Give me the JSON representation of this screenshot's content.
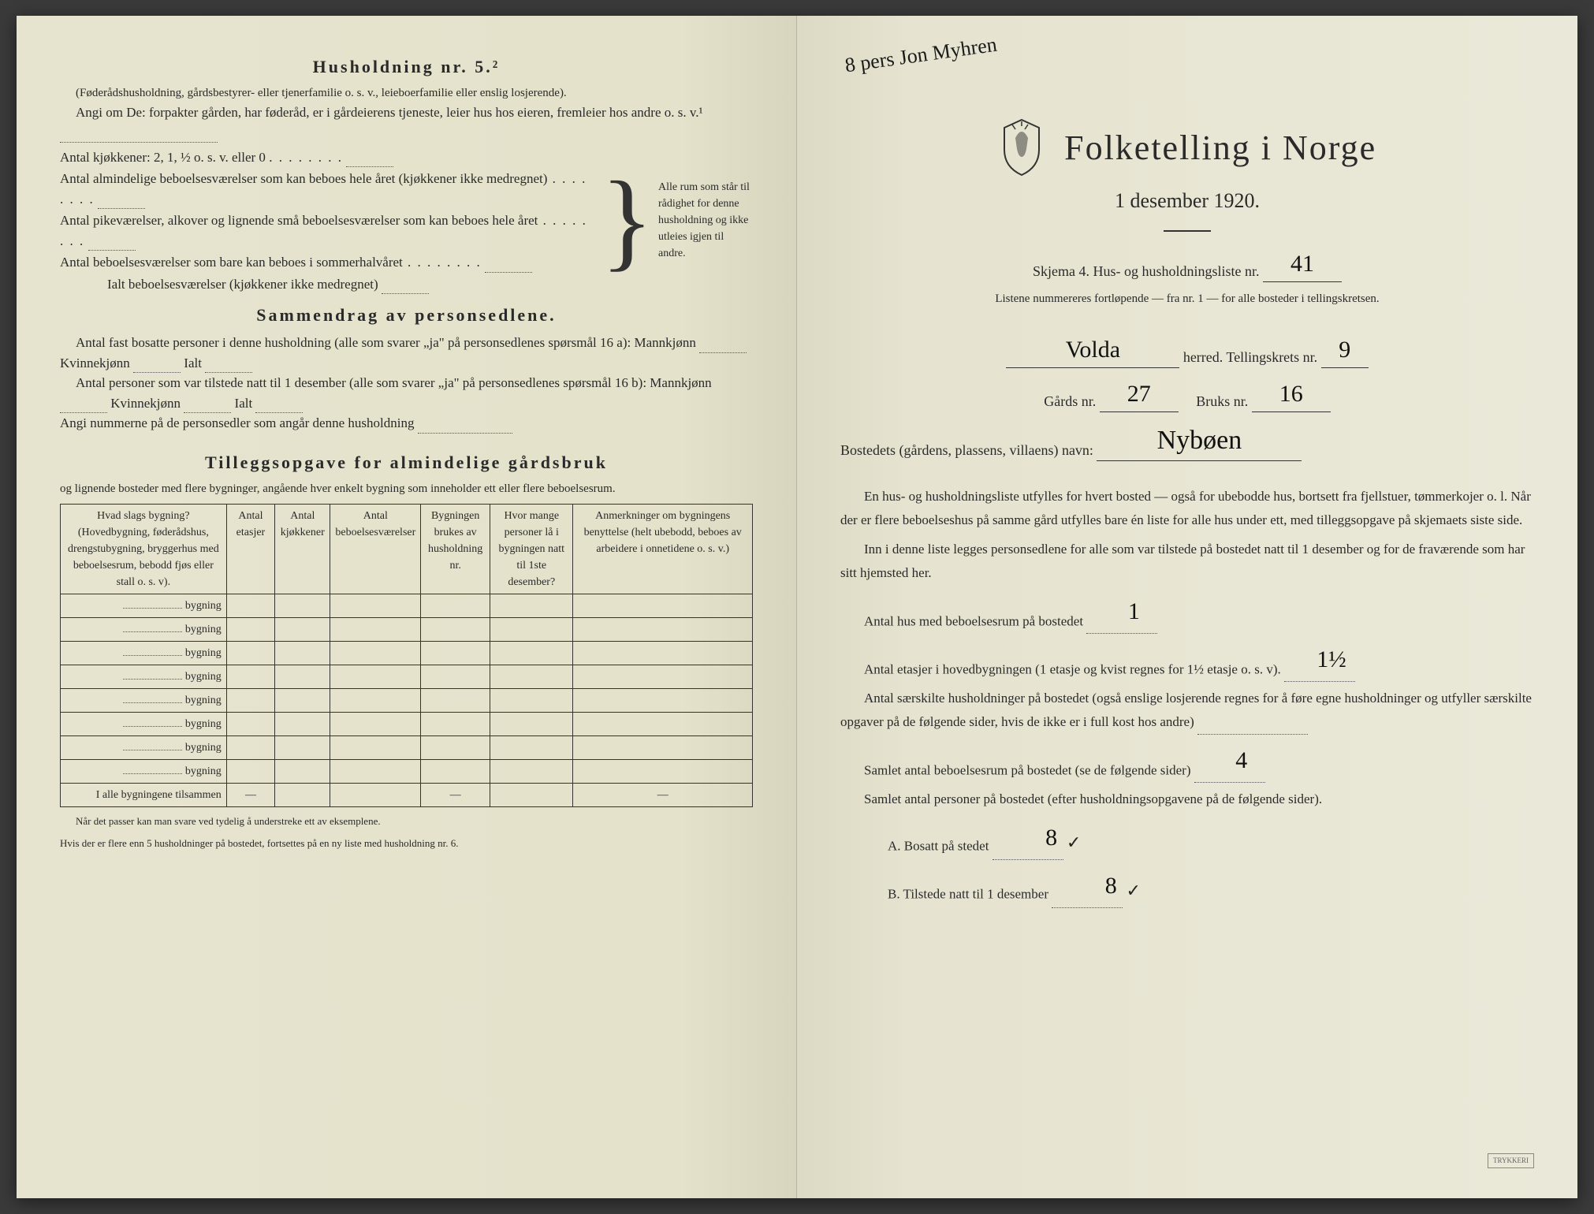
{
  "colors": {
    "paper_left": "#e6e4cf",
    "paper_right": "#eae8d8",
    "ink": "#2a2a2a",
    "handwriting": "#111111",
    "border": "#333333"
  },
  "left": {
    "h5_title": "Husholdning nr. 5.²",
    "h5_sub": "(Føderådshusholdning, gårdsbestyrer- eller tjenerfamilie o. s. v., leieboerfamilie eller enslig losjerende).",
    "h5_angi": "Angi om De: forpakter gården, har føderåd, er i gårdeierens tjeneste, leier hus hos eieren, fremleier hos andre o. s. v.¹",
    "kjokkener": "Antal kjøkkener: 2, 1, ½ o. s. v. eller 0",
    "rooms": [
      "Antal almindelige beboelsesværelser som kan beboes hele året (kjøkkener ikke medregnet)",
      "Antal pikeværelser, alkover og lignende små beboelsesværelser som kan beboes hele året",
      "Antal beboelsesværelser som bare kan beboes i sommerhalvåret",
      "Ialt beboelsesværelser (kjøkkener ikke medregnet)"
    ],
    "brace_text": "Alle rum som står til rådighet for denne husholdning og ikke utleies igjen til andre.",
    "sammendrag_title": "Sammendrag av personsedlene.",
    "sd_line1": "Antal fast bosatte personer i denne husholdning (alle som svarer „ja\" på personsedlenes spørsmål 16 a): Mannkjønn",
    "kvinne": "Kvinnekjønn",
    "ialt": "Ialt",
    "sd_line2": "Antal personer som var tilstede natt til 1 desember (alle som svarer „ja\" på personsedlenes spørsmål 16 b): Mannkjønn",
    "sd_line3": "Angi nummerne på de personsedler som angår denne husholdning",
    "tillegg_title": "Tilleggsopgave for almindelige gårdsbruk",
    "tillegg_sub": "og lignende bosteder med flere bygninger, angående hver enkelt bygning som inneholder ett eller flere beboelsesrum.",
    "table": {
      "headers": [
        "Hvad slags bygning?\n(Hovedbygning, føderådshus, drengstubygning, bryggerhus med beboelsesrum, bebodd fjøs eller stall o. s. v).",
        "Antal etasjer",
        "Antal kjøkkener",
        "Antal beboelsesværelser",
        "Bygningen brukes av husholdning nr.",
        "Hvor mange personer lå i bygningen natt til 1ste desember?",
        "Anmerkninger om bygningens benyttelse (helt ubebodd, beboes av arbeidere i onnetidene o. s. v.)"
      ],
      "row_label": "bygning",
      "row_count": 8,
      "total_label": "I alle bygningene tilsammen"
    },
    "footnote1": "Når det passer kan man svare ved tydelig å understreke ett av eksemplene.",
    "footnote2": "Hvis der er flere enn 5 husholdninger på bostedet, fortsettes på en ny liste med husholdning nr. 6."
  },
  "right": {
    "marginal_note": "8 pers Jon Myhren",
    "title": "Folketelling i Norge",
    "date": "1 desember 1920.",
    "skjema": "Skjema 4.  Hus- og husholdningsliste nr.",
    "liste_nr": "41",
    "listene": "Listene nummereres fortløpende — fra nr. 1 — for alle bosteder i tellingskretsen.",
    "herred_value": "Volda",
    "herred_label": "herred.  Tellingskrets nr.",
    "krets_nr": "9",
    "gards_label": "Gårds nr.",
    "gards_nr": "27",
    "bruks_label": "Bruks nr.",
    "bruks_nr": "16",
    "bosted_label": "Bostedets (gårdens, plassens, villaens) navn:",
    "bosted_value": "Nybøen",
    "para1": "En hus- og husholdningsliste utfylles for hvert bosted — også for ubebodde hus, bortsett fra fjellstuer, tømmerkojer o. l.  Når der er flere beboelseshus på samme gård utfylles bare én liste for alle hus under ett, med tilleggsopgave på skjemaets siste side.",
    "para2": "Inn i denne liste legges personsedlene for alle som var tilstede på bostedet natt til 1 desember og for de fraværende som har sitt hjemsted her.",
    "q_hus": "Antal hus med beboelsesrum på bostedet",
    "a_hus": "1",
    "q_etasjer": "Antal etasjer i hovedbygningen (1 etasje og kvist regnes for 1½ etasje o. s. v).",
    "a_etasjer": "1½",
    "q_hush": "Antal særskilte husholdninger på bostedet (også enslige losjerende regnes for å føre egne husholdninger og utfyller særskilte opgaver på de følgende sider, hvis de ikke er i full kost hos andre)",
    "q_rum": "Samlet antal beboelsesrum på bostedet (se de følgende sider)",
    "a_rum": "4",
    "q_pers": "Samlet antal personer på bostedet (efter husholdningsopgavene på de følgende sider).",
    "a_label": "A.  Bosatt på stedet",
    "a_val": "8",
    "b_label": "B.  Tilstede natt til 1 desember",
    "b_val": "8"
  }
}
